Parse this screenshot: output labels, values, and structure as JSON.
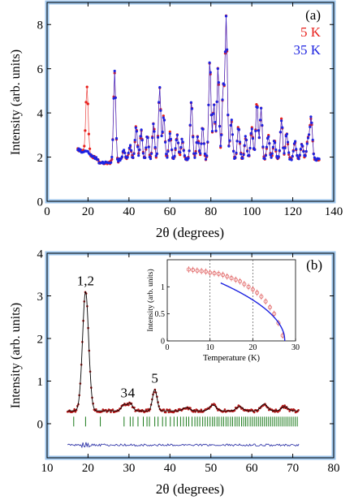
{
  "chart_data": [
    {
      "type": "scatter",
      "panel_label": "(a)",
      "xlabel": "2θ (degrees)",
      "ylabel": "Intensity (arb. units)",
      "xlim": [
        0,
        140
      ],
      "ylim": [
        0,
        9
      ],
      "x_ticks": [
        0,
        20,
        40,
        60,
        80,
        100,
        120,
        140
      ],
      "y_ticks": [
        0,
        2,
        4,
        6,
        8
      ],
      "legend_position": "top-right",
      "series": [
        {
          "name": "5 K",
          "color": "#e8201c",
          "background": 1.9,
          "peaks": [
            [
              19.5,
              3.0,
              0.6
            ],
            [
              33.0,
              4.1,
              0.55
            ],
            [
              37.5,
              0.4,
              0.6
            ],
            [
              40.5,
              0.6,
              0.6
            ],
            [
              43.5,
              1.5,
              0.55
            ],
            [
              46.0,
              1.3,
              0.55
            ],
            [
              49.0,
              1.1,
              0.55
            ],
            [
              52.0,
              1.6,
              0.55
            ],
            [
              55.0,
              3.3,
              0.55
            ],
            [
              57.0,
              2.0,
              0.55
            ],
            [
              60.0,
              1.2,
              0.6
            ],
            [
              63.5,
              1.1,
              0.6
            ],
            [
              66.0,
              0.9,
              0.6
            ],
            [
              70.5,
              2.7,
              0.55
            ],
            [
              73.5,
              1.0,
              0.6
            ],
            [
              76.0,
              1.5,
              0.55
            ],
            [
              79.5,
              4.5,
              0.55
            ],
            [
              81.5,
              2.5,
              0.55
            ],
            [
              83.5,
              4.2,
              0.55
            ],
            [
              86.0,
              3.2,
              0.55
            ],
            [
              87.5,
              6.4,
              0.55
            ],
            [
              90.0,
              1.8,
              0.6
            ],
            [
              93.5,
              1.5,
              0.6
            ],
            [
              97.0,
              1.0,
              0.6
            ],
            [
              100.0,
              1.4,
              0.6
            ],
            [
              102.5,
              2.6,
              0.55
            ],
            [
              104.5,
              2.3,
              0.55
            ],
            [
              108.0,
              1.1,
              0.6
            ],
            [
              111.0,
              0.9,
              0.6
            ],
            [
              114.5,
              1.8,
              0.55
            ],
            [
              117.0,
              1.2,
              0.6
            ],
            [
              121.0,
              0.8,
              0.6
            ],
            [
              124.5,
              0.7,
              0.6
            ],
            [
              127.5,
              0.9,
              0.7
            ],
            [
              129.0,
              1.8,
              0.6
            ]
          ]
        },
        {
          "name": "35 K",
          "color": "#1c22e0",
          "background": 1.9,
          "peaks": [
            [
              19.5,
              0.15,
              0.6
            ],
            [
              33.0,
              4.1,
              0.55
            ],
            [
              37.5,
              0.4,
              0.6
            ],
            [
              40.5,
              0.6,
              0.6
            ],
            [
              43.5,
              1.5,
              0.55
            ],
            [
              46.0,
              1.3,
              0.55
            ],
            [
              49.0,
              1.1,
              0.55
            ],
            [
              52.0,
              1.6,
              0.55
            ],
            [
              55.0,
              3.3,
              0.55
            ],
            [
              57.0,
              2.0,
              0.55
            ],
            [
              60.0,
              1.2,
              0.6
            ],
            [
              63.5,
              1.1,
              0.6
            ],
            [
              66.0,
              0.9,
              0.6
            ],
            [
              70.5,
              2.7,
              0.55
            ],
            [
              73.5,
              1.0,
              0.6
            ],
            [
              76.0,
              1.5,
              0.55
            ],
            [
              79.5,
              4.5,
              0.55
            ],
            [
              81.5,
              2.5,
              0.55
            ],
            [
              83.5,
              4.2,
              0.55
            ],
            [
              86.0,
              3.2,
              0.55
            ],
            [
              87.5,
              6.4,
              0.55
            ],
            [
              90.0,
              1.8,
              0.6
            ],
            [
              93.5,
              1.5,
              0.6
            ],
            [
              97.0,
              1.0,
              0.6
            ],
            [
              100.0,
              1.4,
              0.6
            ],
            [
              102.5,
              2.6,
              0.55
            ],
            [
              104.5,
              2.3,
              0.55
            ],
            [
              108.0,
              1.1,
              0.6
            ],
            [
              111.0,
              0.9,
              0.6
            ],
            [
              114.5,
              1.8,
              0.55
            ],
            [
              117.0,
              1.2,
              0.6
            ],
            [
              121.0,
              0.8,
              0.6
            ],
            [
              124.5,
              0.7,
              0.6
            ],
            [
              127.5,
              0.9,
              0.7
            ],
            [
              129.0,
              1.8,
              0.6
            ]
          ]
        }
      ],
      "x_range": [
        15,
        133
      ]
    },
    {
      "type": "scatter",
      "panel_label": "(b)",
      "xlabel": "2θ (degrees)",
      "ylabel": "Intensity (arb. units)",
      "xlim": [
        10,
        80
      ],
      "ylim": [
        -0.8,
        4
      ],
      "x_ticks": [
        10,
        20,
        30,
        40,
        50,
        60,
        70,
        80
      ],
      "y_ticks": [
        0,
        1,
        2,
        3,
        4
      ],
      "x_range": [
        15,
        71.5
      ],
      "observed_color": "#b01818",
      "fit_color": "#000000",
      "background": 0.3,
      "peaks": [
        [
          19.4,
          2.8,
          0.75
        ],
        [
          28.8,
          0.15,
          0.6
        ],
        [
          30.3,
          0.18,
          0.6
        ],
        [
          36.3,
          0.5,
          0.55
        ],
        [
          44.0,
          0.08,
          0.8
        ],
        [
          50.5,
          0.14,
          0.8
        ],
        [
          57.0,
          0.1,
          0.8
        ],
        [
          63.0,
          0.16,
          0.8
        ],
        [
          68.0,
          0.1,
          0.8
        ]
      ],
      "peak_labels": [
        {
          "text": "1,2",
          "x": 19.4,
          "y": 3.25
        },
        {
          "text": "3",
          "x": 28.8,
          "y": 0.62
        },
        {
          "text": "4",
          "x": 30.6,
          "y": 0.62
        },
        {
          "text": "5",
          "x": 36.3,
          "y": 0.96
        }
      ],
      "reflection_ticks_color": "#1b7a1b",
      "reflection_ticks_y": 0.05,
      "reflection_positions": [
        16.5,
        19.4,
        23.0,
        28.8,
        30.3,
        31.0,
        32.2,
        33.5,
        34.4,
        35.0,
        36.3,
        37.1,
        38.2,
        39.0,
        40.1,
        41.0,
        41.8,
        42.6,
        43.3,
        44.0,
        44.6,
        45.4,
        46.1,
        46.7,
        47.3,
        48.0,
        48.6,
        49.2,
        49.8,
        50.4,
        50.9,
        51.5,
        52.0,
        52.6,
        53.1,
        53.7,
        54.2,
        54.8,
        55.3,
        55.9,
        56.4,
        56.9,
        57.5,
        58.0,
        58.5,
        59.0,
        59.6,
        60.1,
        60.6,
        61.1,
        61.6,
        62.1,
        62.6,
        63.1,
        63.6,
        64.1,
        64.6,
        65.1,
        65.6,
        66.1,
        66.6,
        67.1,
        67.6,
        68.1,
        68.6,
        69.1,
        69.6,
        70.1,
        70.6,
        71.1
      ],
      "difference_color": "#1c22a0",
      "difference_offset": -0.5,
      "inset": {
        "xlabel": "Temperature (K)",
        "ylabel": "Intensity (arb. units)",
        "xlim": [
          0,
          30
        ],
        "ylim": [
          0,
          1.5
        ],
        "x_ticks": [
          0,
          10,
          20,
          30
        ],
        "y_ticks": [
          0,
          0.5,
          1
        ],
        "dashed_gridlines_x": [
          10,
          20
        ],
        "data_color": "#e06060",
        "fit_color": "#1c22e0",
        "data": [
          [
            5,
            1.32
          ],
          [
            6,
            1.31
          ],
          [
            7,
            1.3
          ],
          [
            8,
            1.29
          ],
          [
            9,
            1.28
          ],
          [
            10,
            1.26
          ],
          [
            11,
            1.25
          ],
          [
            12,
            1.24
          ],
          [
            13,
            1.22
          ],
          [
            14,
            1.19
          ],
          [
            15,
            1.16
          ],
          [
            16,
            1.13
          ],
          [
            17,
            1.1
          ],
          [
            18,
            1.05
          ],
          [
            19,
            1.0
          ],
          [
            20,
            0.95
          ],
          [
            21,
            0.89
          ],
          [
            22,
            0.82
          ],
          [
            23,
            0.73
          ],
          [
            24,
            0.62
          ],
          [
            25,
            0.5
          ],
          [
            26,
            0.33
          ],
          [
            27,
            0.1
          ]
        ],
        "fit": {
          "Tc": 27.5,
          "A": 1.45,
          "beta": 0.5,
          "t_start": 12.5
        }
      }
    }
  ]
}
